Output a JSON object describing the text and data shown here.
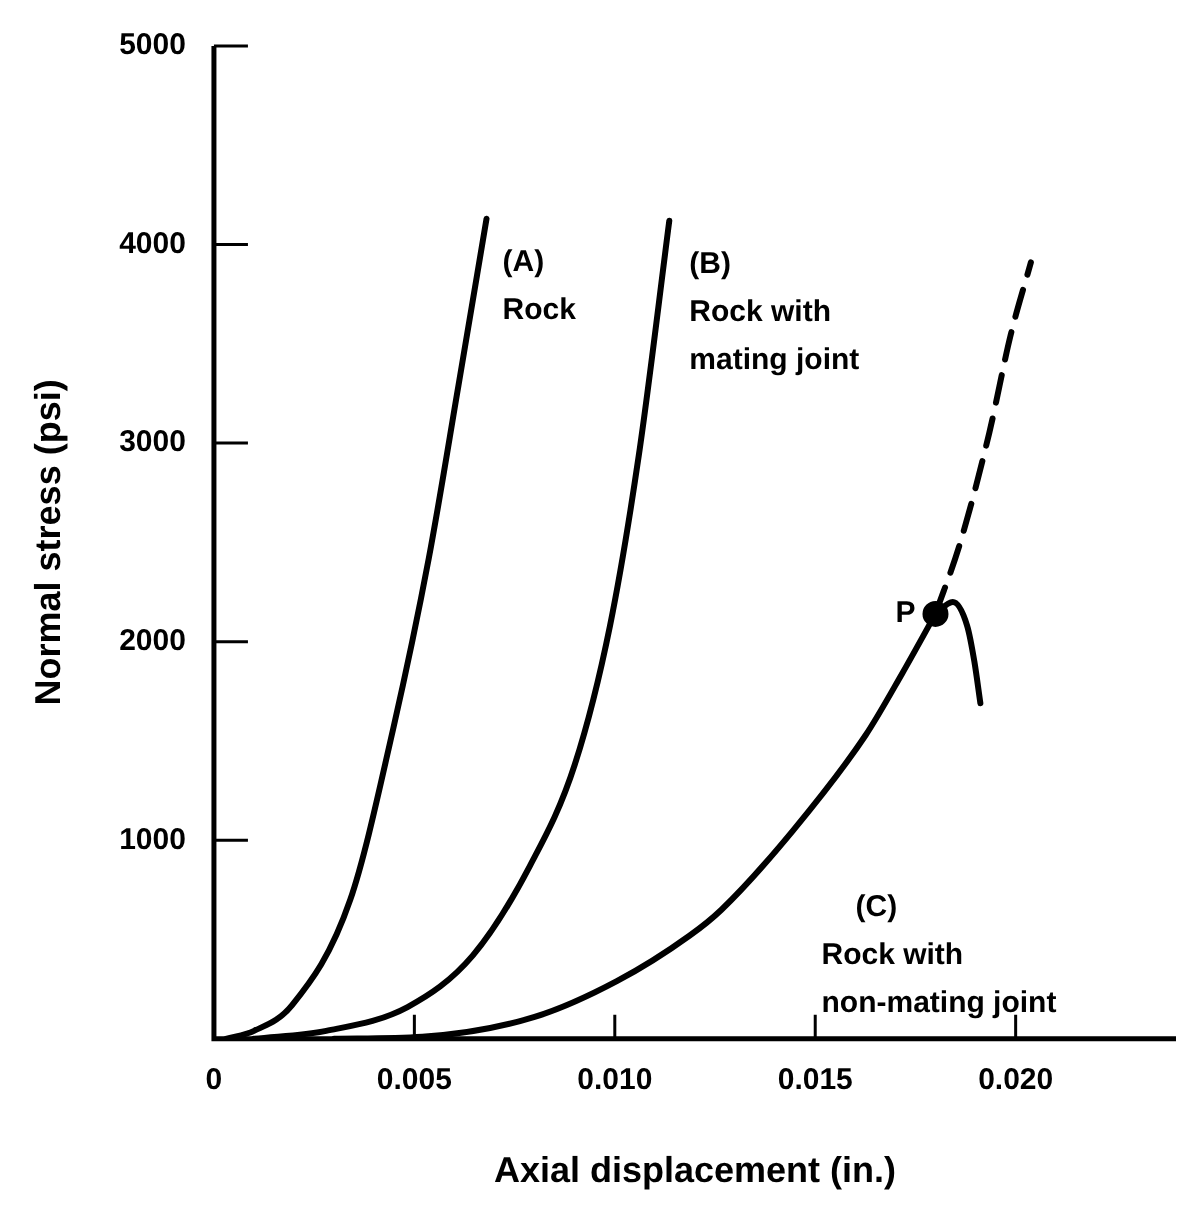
{
  "chart_data": {
    "type": "line",
    "xlabel": "Axial displacement (in.)",
    "ylabel": "Normal stress (psi)",
    "xlim": [
      0,
      0.024
    ],
    "ylim": [
      0,
      5000
    ],
    "xticks": [
      0,
      {
        "value": 0.005,
        "label": "0.005"
      },
      {
        "value": 0.01,
        "label": "0.010"
      },
      {
        "value": 0.015,
        "label": "0.015"
      },
      {
        "value": 0.02,
        "label": "0.020"
      }
    ],
    "yticks": [
      {
        "value": 0,
        "label": null
      },
      1000,
      2000,
      3000,
      4000,
      5000
    ],
    "grid": false,
    "legend": false,
    "marker": "none",
    "series": [
      {
        "name": "(A) Rock",
        "color": "#000000",
        "x": [
          0.0003,
          0.001,
          0.00195,
          0.0034,
          0.00447,
          0.00536,
          0.0061,
          0.0068
        ],
        "values": [
          0,
          40,
          170,
          700,
          1560,
          2420,
          3290,
          4130
        ]
      },
      {
        "name": "(B) Rock with mating joint",
        "color": "#000000",
        "x": [
          0.001,
          0.0028,
          0.00483,
          0.00646,
          0.00788,
          0.009,
          0.00988,
          0.0106,
          0.01136
        ],
        "values": [
          0,
          40,
          160,
          420,
          870,
          1380,
          2080,
          2940,
          4120
        ]
      },
      {
        "name": "(C) Rock with non-mating joint",
        "color": "#000000",
        "x": [
          0.003,
          0.0052,
          0.008,
          0.01005,
          0.01187,
          0.01266,
          0.01445,
          0.01626,
          0.01717,
          0.018
        ],
        "values": [
          0,
          10,
          110,
          290,
          520,
          650,
          1050,
          1530,
          1840,
          2140
        ]
      },
      {
        "color": "#000000",
        "line_style": "dashed",
        "x": [
          0.018,
          0.01862,
          0.01934,
          0.01987,
          0.02038
        ],
        "values": [
          2140,
          2500,
          3050,
          3540,
          3910
        ]
      },
      {
        "color": "#000000",
        "x": [
          0.018,
          0.01843,
          0.01879,
          0.01897,
          0.01912
        ],
        "values": [
          2140,
          2200,
          2080,
          1900,
          1690
        ]
      },
      {
        "type": "scatter",
        "marker": "circle",
        "color": "#000000",
        "x": [
          0.018
        ],
        "values": [
          2140
        ]
      }
    ],
    "annotations": [
      {
        "text": "P",
        "x": 0.018,
        "y": 2140
      }
    ]
  }
}
